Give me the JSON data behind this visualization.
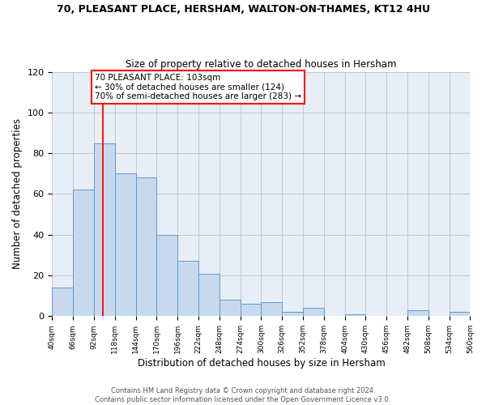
{
  "title1": "70, PLEASANT PLACE, HERSHAM, WALTON-ON-THAMES, KT12 4HU",
  "title2": "Size of property relative to detached houses in Hersham",
  "xlabel": "Distribution of detached houses by size in Hersham",
  "ylabel": "Number of detached properties",
  "bar_edges": [
    40,
    66,
    92,
    118,
    144,
    170,
    196,
    222,
    248,
    274,
    300,
    326,
    352,
    378,
    404,
    430,
    456,
    482,
    508,
    534,
    560
  ],
  "bar_heights": [
    14,
    62,
    85,
    70,
    68,
    40,
    27,
    21,
    8,
    6,
    7,
    2,
    4,
    0,
    1,
    0,
    0,
    3,
    0,
    2
  ],
  "bar_color": "#c8d9ed",
  "bar_edgecolor": "#5b9bd5",
  "ylim": [
    0,
    120
  ],
  "yticks": [
    0,
    20,
    40,
    60,
    80,
    100,
    120
  ],
  "grid_color": "#c0c8d8",
  "background_color": "#e8eef5",
  "red_line_x": 103,
  "annotation_text1": "70 PLEASANT PLACE: 103sqm",
  "annotation_text2": "← 30% of detached houses are smaller (124)",
  "annotation_text3": "70% of semi-detached houses are larger (283) →",
  "footer1": "Contains HM Land Registry data © Crown copyright and database right 2024.",
  "footer2": "Contains public sector information licensed under the Open Government Licence v3.0.",
  "xtick_labels": [
    "40sqm",
    "66sqm",
    "92sqm",
    "118sqm",
    "144sqm",
    "170sqm",
    "196sqm",
    "222sqm",
    "248sqm",
    "274sqm",
    "300sqm",
    "326sqm",
    "352sqm",
    "378sqm",
    "404sqm",
    "430sqm",
    "456sqm",
    "482sqm",
    "508sqm",
    "534sqm",
    "560sqm"
  ]
}
